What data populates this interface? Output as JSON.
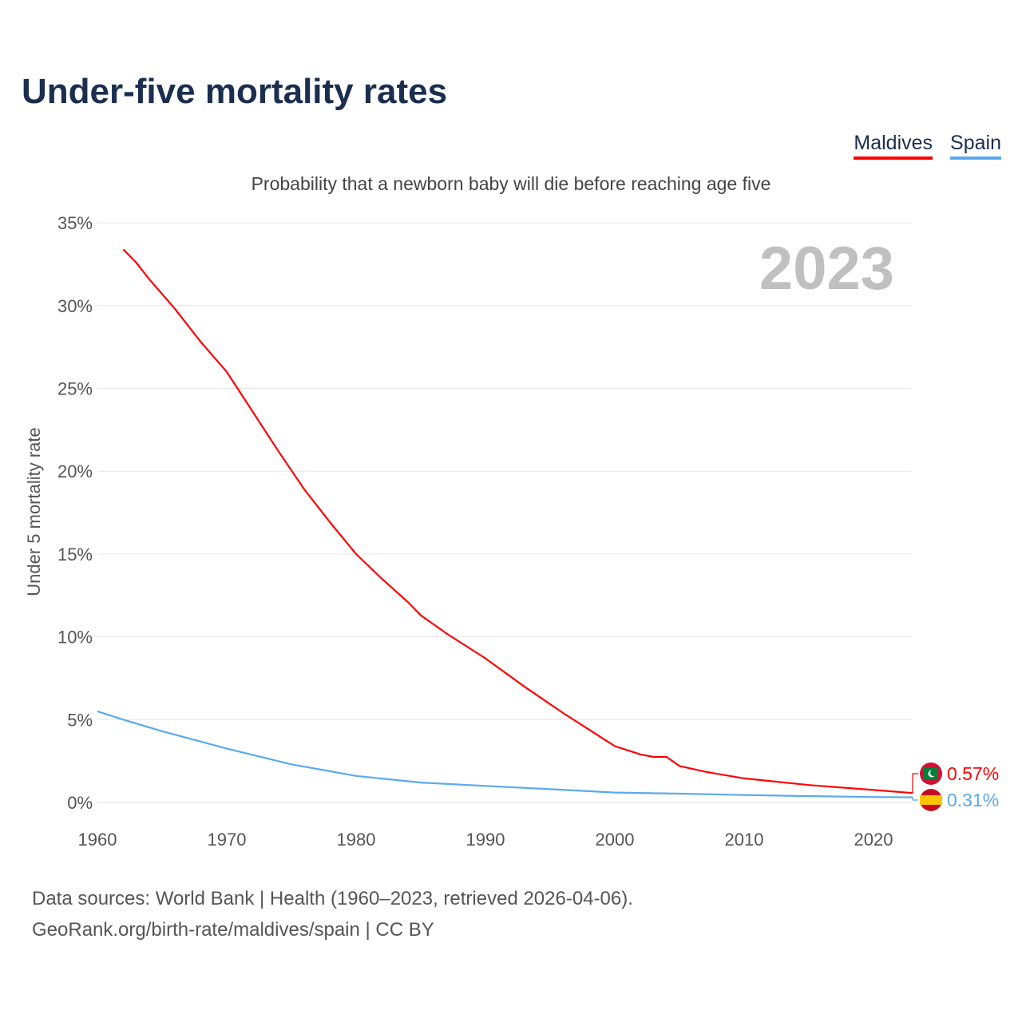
{
  "title": "Under-five mortality rates",
  "legend": [
    {
      "label": "Maldives",
      "color": "#ff0000"
    },
    {
      "label": "Spain",
      "color": "#5aa9ee"
    }
  ],
  "subtitle": "Probability that a newborn baby will die before reaching age five",
  "year_label": "2023",
  "sources": [
    "Data sources: World Bank | Health (1960–2023, retrieved 2026-04-06).",
    "GeoRank.org/birth-rate/maldives/spain | CC BY"
  ],
  "chart_data": {
    "type": "line",
    "title": "Under-five mortality rates",
    "xlabel": "",
    "ylabel": "Under 5 mortality rate",
    "xlim": [
      1960,
      2023
    ],
    "ylim": [
      0,
      35
    ],
    "xticks": [
      "1960",
      "1970",
      "1980",
      "1990",
      "2000",
      "2010",
      "2020"
    ],
    "yticks": [
      "0%",
      "5%",
      "10%",
      "15%",
      "20%",
      "25%",
      "30%",
      "35%"
    ],
    "grid": true,
    "series": [
      {
        "name": "Maldives",
        "color": "#ff0000",
        "end_label": "0.57%",
        "x": [
          1962,
          1963,
          1964,
          1966,
          1968,
          1970,
          1972,
          1974,
          1976,
          1978,
          1980,
          1982,
          1984,
          1985,
          1987,
          1990,
          1993,
          1996,
          1998,
          2000,
          2002,
          2003,
          2004,
          2005,
          2007,
          2010,
          2015,
          2020,
          2023
        ],
        "y": [
          33.4,
          32.6,
          31.6,
          29.8,
          27.8,
          26.0,
          23.6,
          21.2,
          18.9,
          16.9,
          15.0,
          13.5,
          12.1,
          11.3,
          10.2,
          8.7,
          7.0,
          5.4,
          4.4,
          3.4,
          2.9,
          2.75,
          2.75,
          2.2,
          1.85,
          1.45,
          1.05,
          0.75,
          0.57
        ]
      },
      {
        "name": "Spain",
        "color": "#5aa9ee",
        "end_label": "0.31%",
        "x": [
          1960,
          1962,
          1965,
          1970,
          1975,
          1980,
          1985,
          1990,
          1995,
          2000,
          2005,
          2010,
          2015,
          2020,
          2023
        ],
        "y": [
          5.5,
          5.0,
          4.3,
          3.25,
          2.3,
          1.6,
          1.2,
          1.0,
          0.8,
          0.6,
          0.53,
          0.45,
          0.38,
          0.33,
          0.31
        ]
      }
    ]
  }
}
